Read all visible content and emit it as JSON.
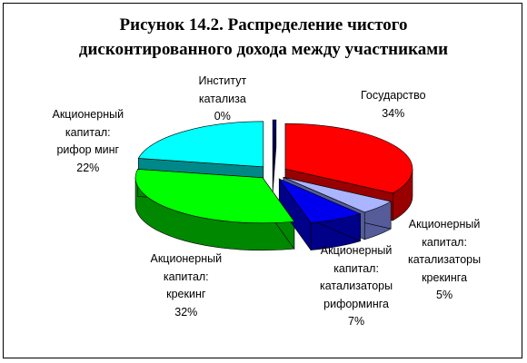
{
  "chart_data": {
    "type": "pie",
    "title_lines": [
      "Рисунок 14.2. Распределение чистого",
      "дисконтированного дохода между участниками"
    ],
    "categories": [
      "Государство",
      "Акционерный капитал: катализаторы крекинга",
      "Акционерный капитал: катализаторы риформинга",
      "Акционерный капитал: крекинг",
      "Акционерный капитал: риформинг",
      "Институт катализа"
    ],
    "values": [
      34,
      5,
      7,
      32,
      22,
      0
    ],
    "percent_labels": [
      "34%",
      "5%",
      "7%",
      "32%",
      "22%",
      "0%"
    ],
    "label_lines": [
      [
        "Государство"
      ],
      [
        "Акционерный",
        "капитал:",
        "катализаторы",
        "крекинга"
      ],
      [
        "Акционерный",
        "капитал:",
        "катализаторы",
        "риформинга"
      ],
      [
        "Акционерный",
        "капитал:",
        "крекинг"
      ],
      [
        "Акционерный",
        "капитал:",
        "рифор минг"
      ],
      [
        "Институт",
        "катализа"
      ]
    ],
    "colors": [
      "#ff0000",
      "#aab4ff",
      "#0000ee",
      "#00ff00",
      "#00ffff",
      "#000080"
    ],
    "side_colors": [
      "#990000",
      "#555c99",
      "#000088",
      "#008800",
      "#008888",
      "#000050"
    ],
    "exploded": true,
    "3d": true,
    "legend": "none"
  }
}
